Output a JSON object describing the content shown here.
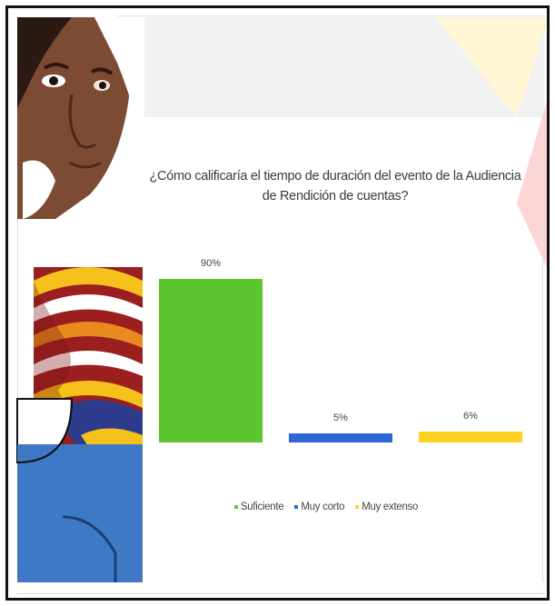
{
  "colors": {
    "suficiente": "#5cc62e",
    "muy_corto": "#2f67d8",
    "muy_extenso": "#ffd21f",
    "text": "#3a3a3a"
  },
  "chart_data": {
    "type": "bar",
    "title": "¿Cómo calificaría el tiempo de duración del evento de la Audiencia de Rendición de cuentas?",
    "title_lines": [
      "¿Cómo calificaría el tiempo de duración del evento de la Audiencia",
      "de Rendición de cuentas?"
    ],
    "categories": [
      "Suficiente",
      "Muy corto",
      "Muy extenso"
    ],
    "values": [
      90,
      5,
      6
    ],
    "data_labels": [
      "90%",
      "5%",
      "6%"
    ],
    "units": "%",
    "grid": false,
    "legend_position": "bottom",
    "legend": [
      "Suficiente",
      "Muy corto",
      "Muy extenso"
    ]
  }
}
